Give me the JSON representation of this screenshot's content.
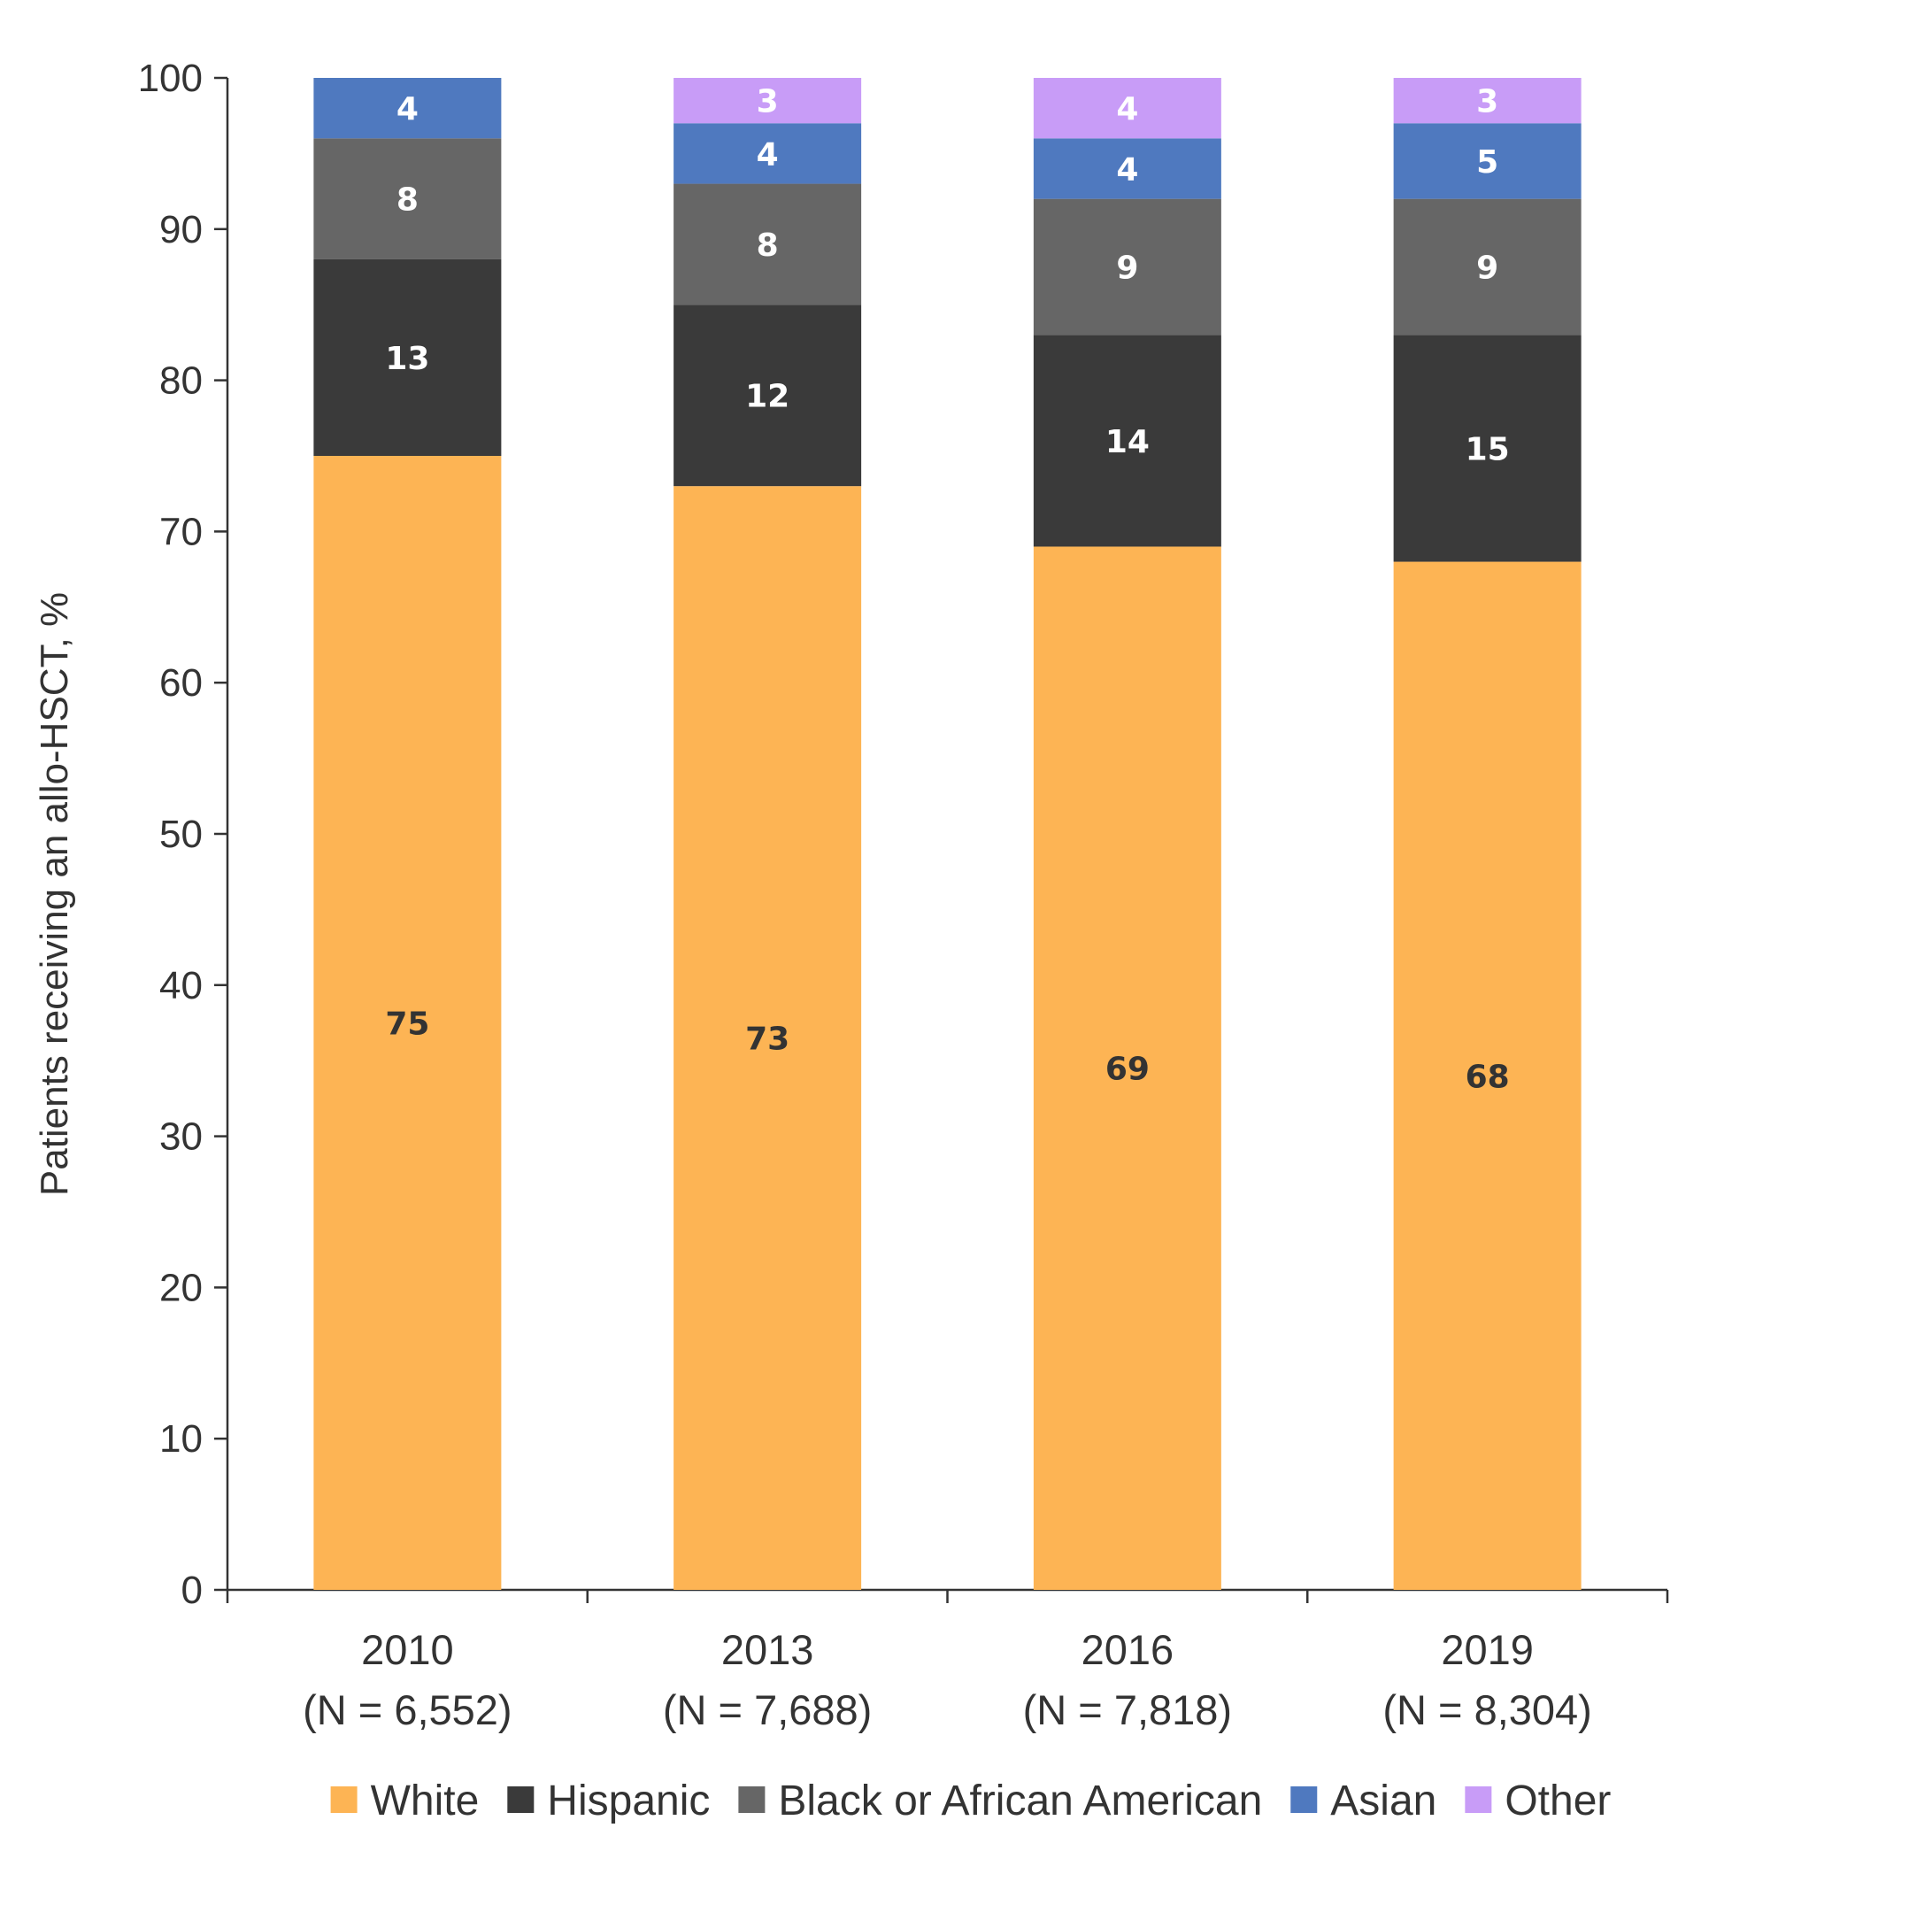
{
  "chart_data": {
    "type": "bar",
    "stacked": true,
    "title": "",
    "xlabel": "",
    "ylabel": "Patients receiving an allo-HSCT, %",
    "ylim": [
      0,
      100
    ],
    "yticks": [
      0,
      10,
      20,
      30,
      40,
      50,
      60,
      70,
      80,
      90,
      100
    ],
    "categories": [
      {
        "year": "2010",
        "n": "(N = 6,552)"
      },
      {
        "year": "2013",
        "n": "(N = 7,688)"
      },
      {
        "year": "2016",
        "n": "(N = 7,818)"
      },
      {
        "year": "2019",
        "n": "(N = 8,304)"
      }
    ],
    "series": [
      {
        "name": "White",
        "color": "#FDB454",
        "label_color": "#333333",
        "values": [
          75,
          73,
          69,
          68
        ]
      },
      {
        "name": "Hispanic",
        "color": "#3A3A3A",
        "label_color": "#ffffff",
        "values": [
          13,
          12,
          14,
          15
        ]
      },
      {
        "name": "Black or African American",
        "color": "#666666",
        "label_color": "#ffffff",
        "values": [
          8,
          8,
          9,
          9
        ]
      },
      {
        "name": "Asian",
        "color": "#4F79BF",
        "label_color": "#ffffff",
        "values": [
          4,
          4,
          4,
          5
        ]
      },
      {
        "name": "Other",
        "color": "#C89CF7",
        "label_color": "#ffffff",
        "values": [
          null,
          3,
          4,
          3
        ]
      }
    ],
    "legend_position": "bottom",
    "grid": false
  }
}
